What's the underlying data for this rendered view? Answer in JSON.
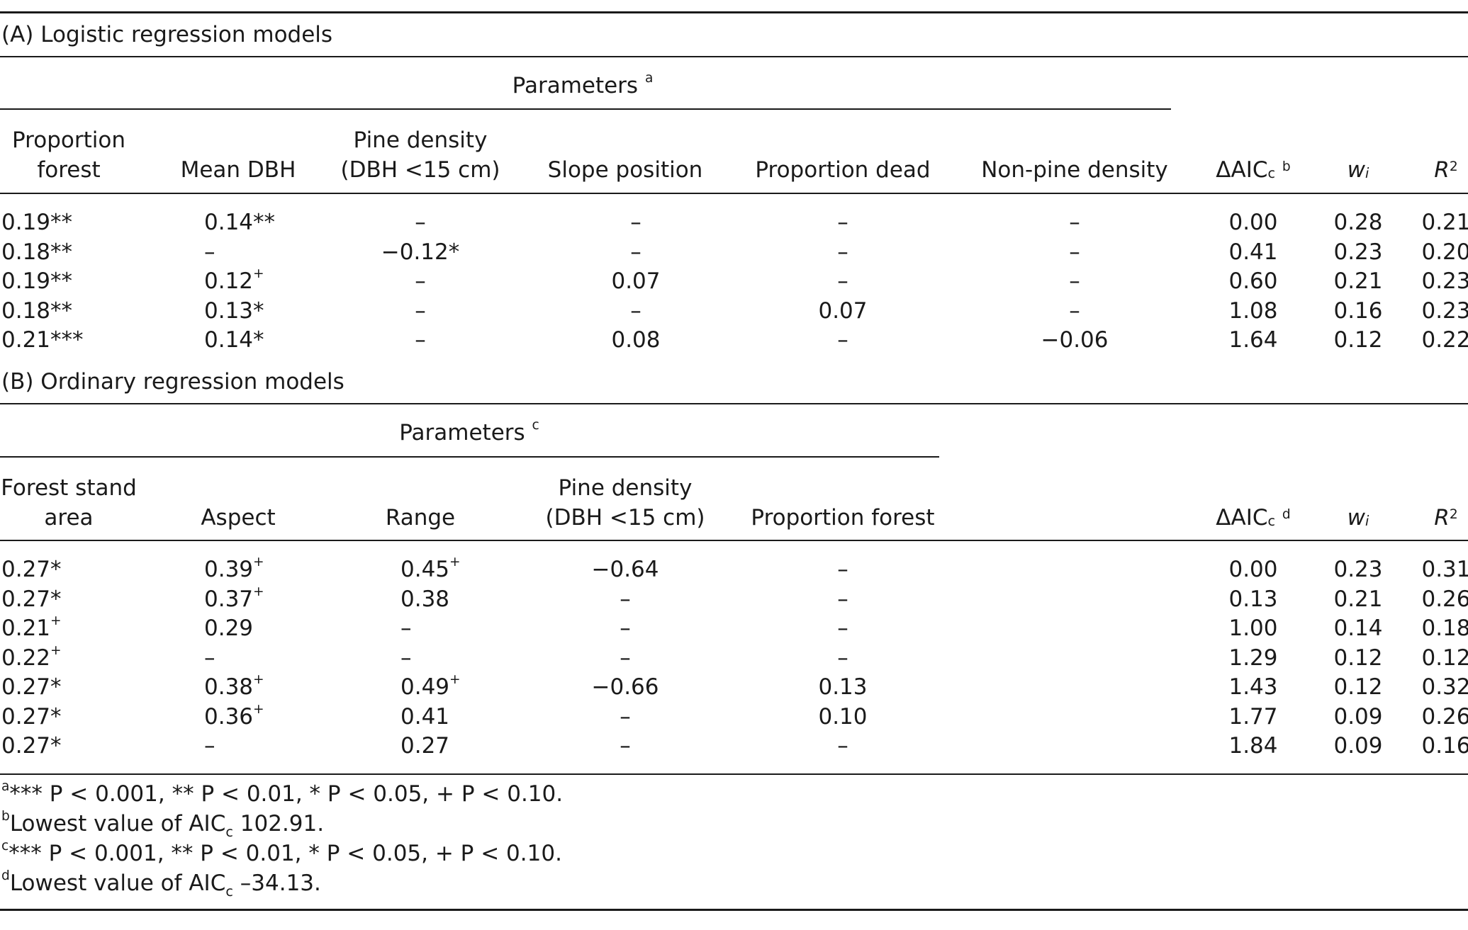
{
  "section_a": {
    "title": "(A) Logistic regression models",
    "group_header": "Parameters",
    "group_note": "a",
    "columns": [
      "Proportion forest",
      "Mean DBH",
      "Pine density (DBH <15 cm)",
      "Slope position",
      "Proportion dead",
      "Non-pine density"
    ],
    "col_proportion_forest_1": "Proportion",
    "col_proportion_forest_2": "forest",
    "col_mean_dbh": "Mean DBH",
    "col_pine_density_1": "Pine density",
    "col_pine_density_2": "(DBH <15 cm)",
    "col_slope_position": "Slope position",
    "col_proportion_dead": "Proportion dead",
    "col_nonpine_density": "Non-pine density",
    "col_daic": "ΔAIC",
    "col_daic_sub": "c",
    "col_daic_note": "b",
    "col_w": "w",
    "col_w_sub": "i",
    "col_r2": "R",
    "col_r2_sup": "2",
    "rows": [
      [
        "0.19**",
        "0.14**",
        "–",
        "–",
        "–",
        "–",
        "0.00",
        "0.28",
        "0.21"
      ],
      [
        "0.18**",
        "–",
        "−0.12*",
        "–",
        "–",
        "–",
        "0.41",
        "0.23",
        "0.20"
      ],
      [
        "0.19**",
        "0.12+",
        "–",
        "0.07",
        "–",
        "–",
        "0.60",
        "0.21",
        "0.23"
      ],
      [
        "0.18**",
        "0.13*",
        "–",
        "–",
        "0.07",
        "–",
        "1.08",
        "0.16",
        "0.23"
      ],
      [
        "0.21***",
        "0.14*",
        "–",
        "0.08",
        "–",
        "−0.06",
        "1.64",
        "0.12",
        "0.22"
      ]
    ]
  },
  "section_b": {
    "title": "(B) Ordinary regression models",
    "group_header": "Parameters",
    "group_note": "c",
    "col_forest_stand_1": "Forest stand",
    "col_forest_stand_2": "area",
    "col_aspect": "Aspect",
    "col_range": "Range",
    "col_pine_density_1": "Pine density",
    "col_pine_density_2": "(DBH <15 cm)",
    "col_proportion_forest": "Proportion forest",
    "col_daic": "ΔAIC",
    "col_daic_sub": "c",
    "col_daic_note": "d",
    "col_w": "w",
    "col_w_sub": "i",
    "col_r2": "R",
    "col_r2_sup": "2",
    "rows": [
      [
        "0.27*",
        "0.39+",
        "0.45+",
        "−0.64",
        "–",
        "0.00",
        "0.23",
        "0.31"
      ],
      [
        "0.27*",
        "0.37+",
        "0.38",
        "–",
        "–",
        "0.13",
        "0.21",
        "0.26"
      ],
      [
        "0.21+",
        "0.29",
        "–",
        "–",
        "–",
        "1.00",
        "0.14",
        "0.18"
      ],
      [
        "0.22+",
        "–",
        "–",
        "–",
        "–",
        "1.29",
        "0.12",
        "0.12"
      ],
      [
        "0.27*",
        "0.38+",
        "0.49+",
        "−0.66",
        "0.13",
        "1.43",
        "0.12",
        "0.32"
      ],
      [
        "0.27*",
        "0.36+",
        "0.41",
        "–",
        "0.10",
        "1.77",
        "0.09",
        "0.26"
      ],
      [
        "0.27*",
        "–",
        "0.27",
        "–",
        "–",
        "1.84",
        "0.09",
        "0.16"
      ]
    ]
  },
  "footnotes": {
    "a": "a",
    "a_text": "*** P < 0.001, ** P < 0.01, * P < 0.05, + P < 0.10.",
    "b": "b",
    "b_text": "Lowest value of AIC",
    "b_sub": "c",
    "b_value": "102.91.",
    "c": "c",
    "c_text": "*** P < 0.001, ** P < 0.01, * P < 0.05, + P < 0.10.",
    "d": "d",
    "d_text": "Lowest value of AIC",
    "d_sub": "c",
    "d_value": "–34.13."
  }
}
